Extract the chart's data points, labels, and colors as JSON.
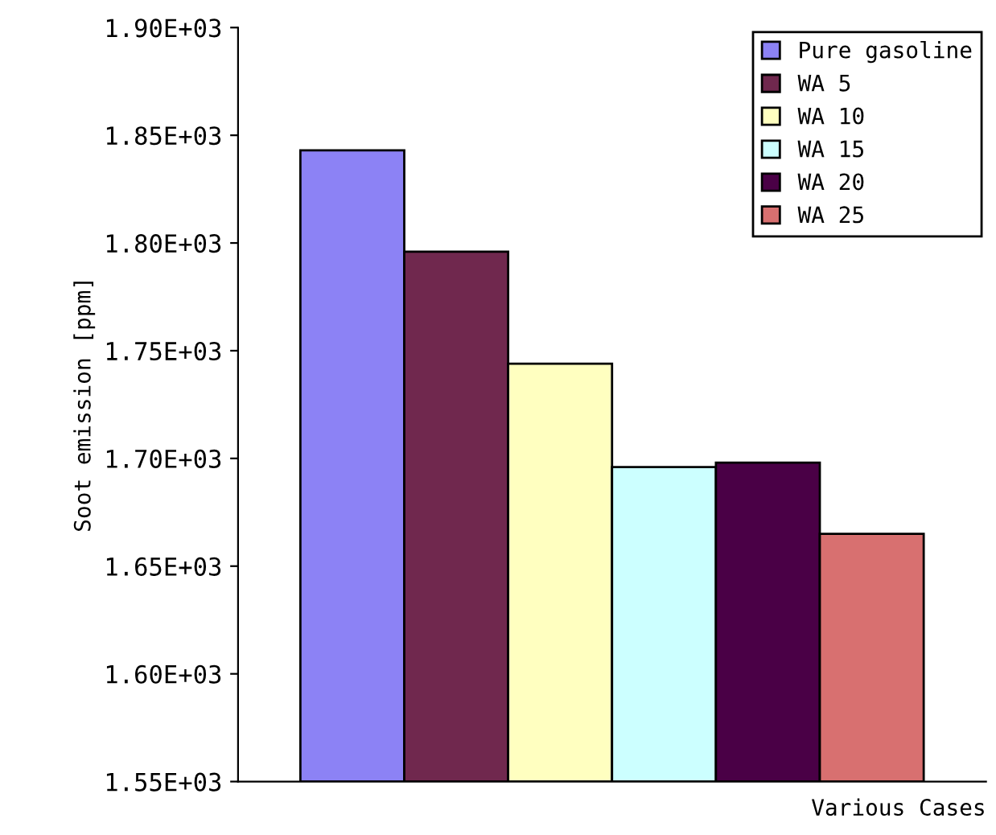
{
  "chart_data": {
    "type": "bar",
    "ylabel": "Soot emission [ppm]",
    "xlabel": "Various Cases",
    "categories": [
      null
    ],
    "series": [
      {
        "name": "Pure gasoline",
        "color": "#8c82f5",
        "values": [
          1843
        ]
      },
      {
        "name": "WA 5",
        "color": "#70284e",
        "values": [
          1796
        ]
      },
      {
        "name": "WA 10",
        "color": "#ffffc0",
        "values": [
          1744
        ]
      },
      {
        "name": "WA 15",
        "color": "#ccffff",
        "values": [
          1696
        ]
      },
      {
        "name": "WA 20",
        "color": "#4a0046",
        "values": [
          1698
        ]
      },
      {
        "name": "WA 25",
        "color": "#d87070",
        "values": [
          1665
        ]
      }
    ],
    "ylim": [
      1550,
      1900
    ],
    "yticks": [
      {
        "value": 1550,
        "label": "1.55E+03"
      },
      {
        "value": 1600,
        "label": "1.60E+03"
      },
      {
        "value": 1650,
        "label": "1.65E+03"
      },
      {
        "value": 1700,
        "label": "1.70E+03"
      },
      {
        "value": 1750,
        "label": "1.75E+03"
      },
      {
        "value": 1800,
        "label": "1.80E+03"
      },
      {
        "value": 1850,
        "label": "1.85E+03"
      },
      {
        "value": 1900,
        "label": "1.90E+03"
      }
    ],
    "legend": "top right",
    "grid": false
  }
}
